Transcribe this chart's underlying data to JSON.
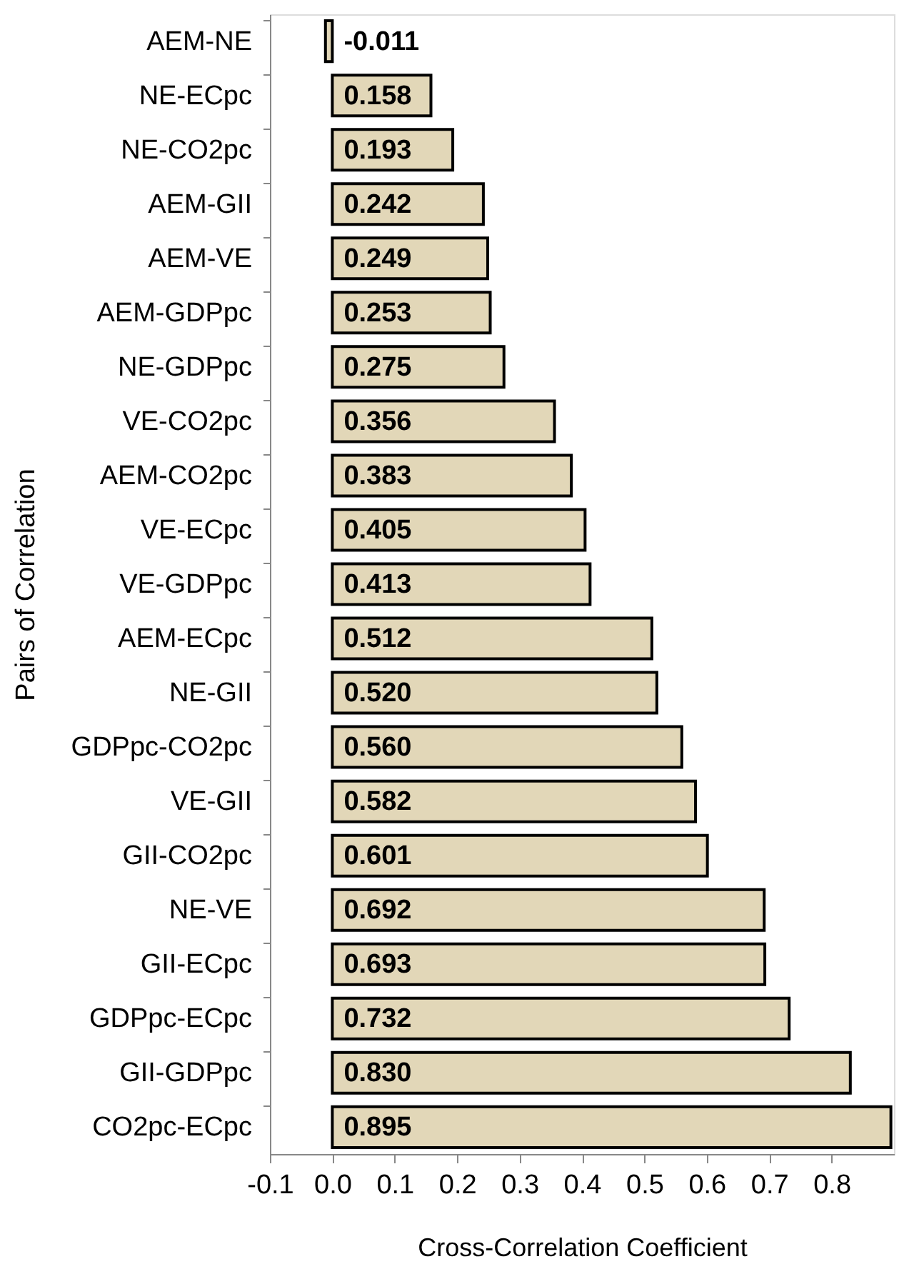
{
  "chart_data": {
    "type": "bar",
    "orientation": "horizontal",
    "xlabel": "Cross-Correlation Coefficient",
    "ylabel": "Pairs of Correlation",
    "categories": [
      "AEM-NE",
      "NE-ECpc",
      "NE-CO2pc",
      "AEM-GII",
      "AEM-VE",
      "AEM-GDPpc",
      "NE-GDPpc",
      "VE-CO2pc",
      "AEM-CO2pc",
      "VE-ECpc",
      "VE-GDPpc",
      "AEM-ECpc",
      "NE-GII",
      "GDPpc-CO2pc",
      "VE-GII",
      "GII-CO2pc",
      "NE-VE",
      "GII-ECpc",
      "GDPpc-ECpc",
      "GII-GDPpc",
      "CO2pc-ECpc"
    ],
    "values": [
      -0.011,
      0.158,
      0.193,
      0.242,
      0.249,
      0.253,
      0.275,
      0.356,
      0.383,
      0.405,
      0.413,
      0.512,
      0.52,
      0.56,
      0.582,
      0.601,
      0.692,
      0.693,
      0.732,
      0.83,
      0.895
    ],
    "value_labels": [
      "-0.011",
      "0.158",
      "0.193",
      "0.242",
      "0.249",
      "0.253",
      "0.275",
      "0.356",
      "0.383",
      "0.405",
      "0.413",
      "0.512",
      "0.520",
      "0.560",
      "0.582",
      "0.601",
      "0.692",
      "0.693",
      "0.732",
      "0.830",
      "0.895"
    ],
    "color": "#e2d7b8",
    "xlim": [
      -0.1,
      0.9
    ],
    "xticks": [
      -0.1,
      {
        "value": 0,
        "label": "0.0"
      },
      0.1,
      0.2,
      0.3,
      0.4,
      0.5,
      0.6,
      0.7,
      0.8
    ]
  }
}
